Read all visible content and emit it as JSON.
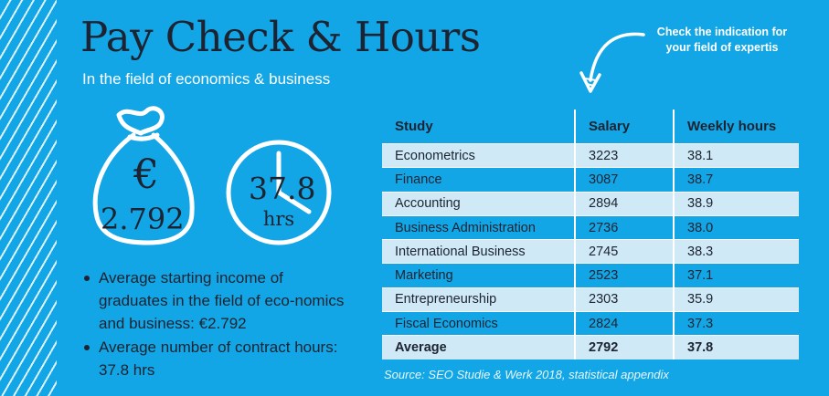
{
  "header": {
    "title": "Pay Check & Hours",
    "subtitle": "In the field of economics & business"
  },
  "callout": {
    "line1": "Check the indication for",
    "line2": "your field of expertis"
  },
  "income_graphic": {
    "currency_symbol": "€",
    "value": "2.792",
    "icon": "money-bag-icon"
  },
  "hours_graphic": {
    "value": "37.8",
    "unit": "hrs",
    "icon": "clock-icon"
  },
  "bullets": [
    "Average starting income of graduates in the field of eco-nomics and business: €2.792",
    "Average number of contract hours: 37.8 hrs"
  ],
  "table": {
    "headers": [
      "Study",
      "Salary",
      "Weekly hours"
    ],
    "rows": [
      [
        "Econometrics",
        "3223",
        "38.1"
      ],
      [
        "Finance",
        "3087",
        "38.7"
      ],
      [
        "Accounting",
        "2894",
        "38.9"
      ],
      [
        "Business Administration",
        "2736",
        "38.0"
      ],
      [
        "International Business",
        "2745",
        "38.3"
      ],
      [
        "Marketing",
        "2523",
        "37.1"
      ],
      [
        "Entrepreneurship",
        "2303",
        "35.9"
      ],
      [
        "Fiscal Economics",
        "2824",
        "37.3"
      ],
      [
        "Average",
        "2792",
        "37.8"
      ]
    ]
  },
  "source": "Source: SEO Studie & Werk 2018, statistical appendix",
  "colors": {
    "background": "#12a6e6",
    "row_light": "#cfeaf6",
    "text_dark": "#1d2330"
  }
}
